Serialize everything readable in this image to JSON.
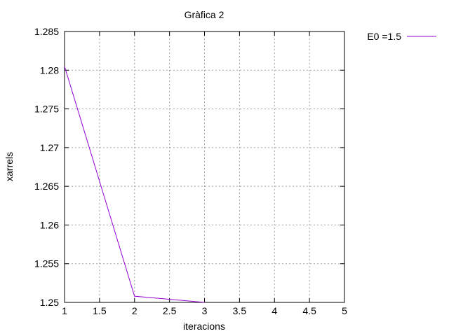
{
  "chart_data": {
    "type": "line",
    "title": "Gràfica 2",
    "xlabel": "iteracions",
    "ylabel": "xarrels",
    "xlim": [
      1,
      5
    ],
    "ylim": [
      1.25,
      1.285
    ],
    "xticks": [
      1,
      1.5,
      2,
      2.5,
      3,
      3.5,
      4,
      4.5,
      5
    ],
    "xtick_labels": [
      "1",
      "1.5",
      "2",
      "2.5",
      "3",
      "3.5",
      "4",
      "4.5",
      "5"
    ],
    "yticks": [
      1.25,
      1.255,
      1.26,
      1.265,
      1.27,
      1.275,
      1.28,
      1.285
    ],
    "ytick_labels": [
      "1.25",
      "1.255",
      "1.26",
      "1.265",
      "1.27",
      "1.275",
      "1.28",
      "1.285"
    ],
    "grid": true,
    "legend_position": "outside-top-right",
    "series": [
      {
        "name": "E0 =1.5",
        "color": "#9400d3",
        "x": [
          1,
          2,
          3
        ],
        "y": [
          1.2805,
          1.2508,
          1.25
        ]
      }
    ]
  }
}
